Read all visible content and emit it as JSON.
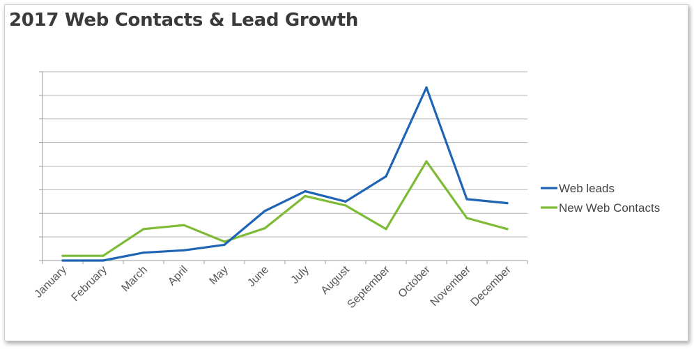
{
  "chart_data": {
    "type": "line",
    "title": "2017 Web Contacts & Lead Growth",
    "xlabel": "",
    "ylabel": "",
    "categories": [
      "January",
      "February",
      "March",
      "April",
      "May",
      "June",
      "July",
      "August",
      "September",
      "October",
      "November",
      "December"
    ],
    "series": [
      {
        "name": "Web leads",
        "color": "#1f64b4",
        "values": [
          0,
          0,
          1.0,
          1.3,
          2.0,
          6.3,
          8.8,
          7.5,
          10.7,
          22.0,
          7.8,
          7.3
        ]
      },
      {
        "name": "New Web Contacts",
        "color": "#7dbb34",
        "values": [
          0.6,
          0.6,
          4.0,
          4.5,
          2.4,
          4.1,
          8.2,
          7.0,
          4.0,
          12.6,
          5.4,
          4.0
        ]
      }
    ],
    "ylim": [
      0,
      24
    ],
    "y_gridline_step": 3,
    "y_tick_labels_shown": false,
    "grid": true,
    "legend_position": "right"
  }
}
